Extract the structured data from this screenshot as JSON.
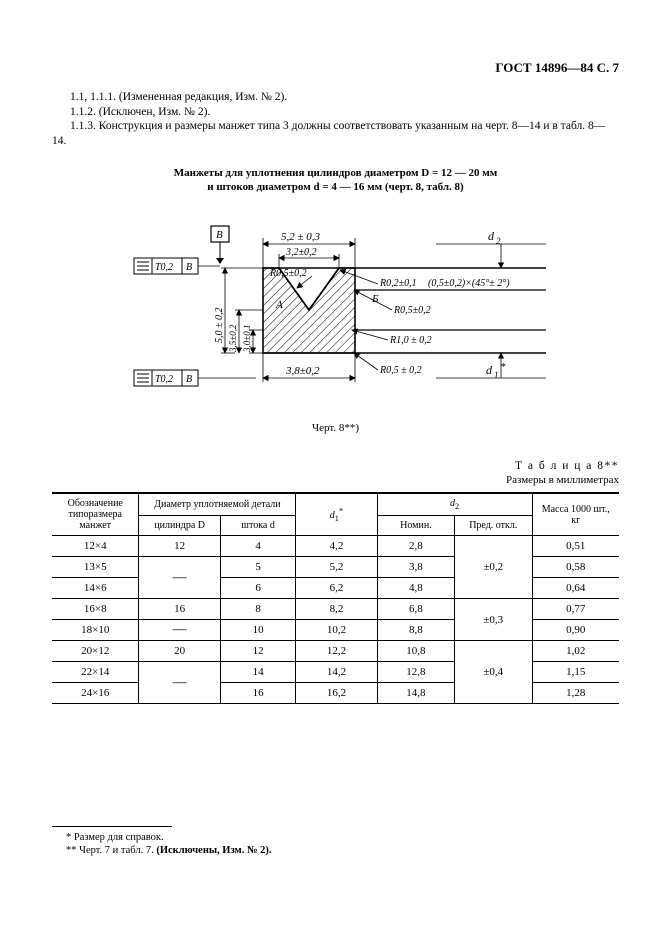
{
  "header": {
    "doc_id": "ГОСТ 14896—84 С. 7"
  },
  "body": {
    "p1": "1.1, 1.1.1. (Измененная редакция, Изм. № 2).",
    "p2": "1.1.2. (Исключен, Изм. № 2).",
    "p3": "1.1.3. Конструкция и размеры манжет типа 3 должны соответствовать указанным на черт. 8—14 и в табл. 8—14."
  },
  "figure": {
    "title_l1": "Манжеты для уплотнения цилиндров диаметром D = 12 — 20 мм",
    "title_l2": "и штоков диаметром d = 4 — 16 мм (черт. 8, табл. 8)",
    "caption": "Черт. 8**)",
    "dims": {
      "top": "5,2 ± 0,3",
      "t32": "3,2±0,2",
      "r05a": "R0,5±0,2",
      "r02": "R0,2±0,1",
      "chamfer": "(0,5±0,2)×(45°± 2°)",
      "r05b": "R0,5±0,2",
      "r10": "R1,0 ± 0,2",
      "r05c": "R0,5 ± 0,2",
      "s38": "3,8±0,2",
      "h50": "5,0 ± 0,2",
      "h35": "3,5±0,2",
      "h30": "3,0±0,1",
      "d2": "d",
      "d2sub": "2",
      "d1": "d",
      "d1sub": "1",
      "d1star": "*",
      "tol": "Т0,2",
      "B": "В",
      "A": "А",
      "Bsym": "Б"
    }
  },
  "table": {
    "label": "Т а б л и ц а  8**",
    "units": "Размеры в миллиметрах",
    "head": {
      "c1": "Обозначение типоразмера манжет",
      "c2": "Диаметр уплотняемой детали",
      "c2a": "цилиндра D",
      "c2b": "штока d",
      "c3_html": "<i>d</i><sub>1</sub><sup>*</sup>",
      "c4_html": "<i>d</i><sub>2</sub>",
      "c4a": "Номин.",
      "c4b": "Пред. откл.",
      "c5": "Масса 1000 шт., кг"
    },
    "rows": [
      {
        "sz": "12×4",
        "D": "12",
        "d": "4",
        "d1": "4,2",
        "nom": "2,8",
        "tol": "±0,2",
        "m": "0,51"
      },
      {
        "sz": "13×5",
        "D": "—",
        "d": "5",
        "d1": "5,2",
        "nom": "3,8",
        "tol": "",
        "m": "0,58"
      },
      {
        "sz": "14×6",
        "D": "",
        "d": "6",
        "d1": "6,2",
        "nom": "4,8",
        "tol": "",
        "m": "0,64"
      },
      {
        "sz": "16×8",
        "D": "16",
        "d": "8",
        "d1": "8,2",
        "nom": "6,8",
        "tol": "±0,3",
        "m": "0,77"
      },
      {
        "sz": "18×10",
        "D": "—",
        "d": "10",
        "d1": "10,2",
        "nom": "8,8",
        "tol": "",
        "m": "0,90"
      },
      {
        "sz": "20×12",
        "D": "20",
        "d": "12",
        "d1": "12,2",
        "nom": "10,8",
        "tol": "±0,4",
        "m": "1,02"
      },
      {
        "sz": "22×14",
        "D": "—",
        "d": "14",
        "d1": "14,2",
        "nom": "12,8",
        "tol": "",
        "m": "1,15"
      },
      {
        "sz": "24×16",
        "D": "",
        "d": "16",
        "d1": "16,2",
        "nom": "14,8",
        "tol": "",
        "m": "1,28"
      }
    ]
  },
  "footnotes": {
    "f1": "* Размер для справок.",
    "f2_a": "** Черт. 7 и табл. 7. ",
    "f2_b": "(Исключены, Изм. № 2)."
  }
}
